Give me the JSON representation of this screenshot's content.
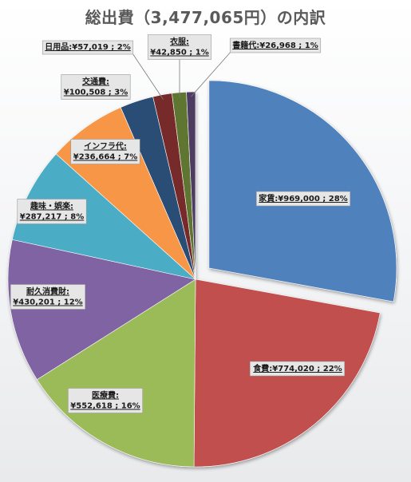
{
  "chart_data": {
    "type": "pie",
    "title": "総出費（3,477,065円）の内訳",
    "total": 3477065,
    "currency_symbol": "¥",
    "slices": [
      {
        "name": "家賃",
        "value": 969000,
        "percent": 28,
        "color": "#4f81bd",
        "label": "家賃; ¥969,000; 28%",
        "exploded": true
      },
      {
        "name": "食費",
        "value": 774020,
        "percent": 22,
        "color": "#c0504d",
        "label": "食費; ¥774,020; 22%"
      },
      {
        "name": "医療費",
        "value": 552618,
        "percent": 16,
        "color": "#9bbb59",
        "label": "医療費; ¥552,618; 16%"
      },
      {
        "name": "耐久消費財",
        "value": 430201,
        "percent": 12,
        "color": "#8064a2",
        "label": "耐久消費財; ¥430,201; 12%"
      },
      {
        "name": "趣味・娯楽",
        "value": 287217,
        "percent": 8,
        "color": "#4bacc6",
        "label": "趣味・娯楽; ¥287,217; 8%"
      },
      {
        "name": "インフラ代",
        "value": 236664,
        "percent": 7,
        "color": "#f79646",
        "label": "インフラ代; ¥236,664; 7%"
      },
      {
        "name": "交通費",
        "value": 100508,
        "percent": 3,
        "color": "#2c4d75",
        "label": "交通費; ¥100,508; 3%"
      },
      {
        "name": "日用品",
        "value": 57019,
        "percent": 2,
        "color": "#772c2a",
        "label": "日用品; ¥57,019; 2%"
      },
      {
        "name": "衣服",
        "value": 42850,
        "percent": 1,
        "color": "#5f7530",
        "label": "衣服; ¥42,850; 1%"
      },
      {
        "name": "書籍代",
        "value": 26968,
        "percent": 1,
        "color": "#4d3b62",
        "label": "書籍代; ¥26,968; 1%"
      }
    ]
  }
}
